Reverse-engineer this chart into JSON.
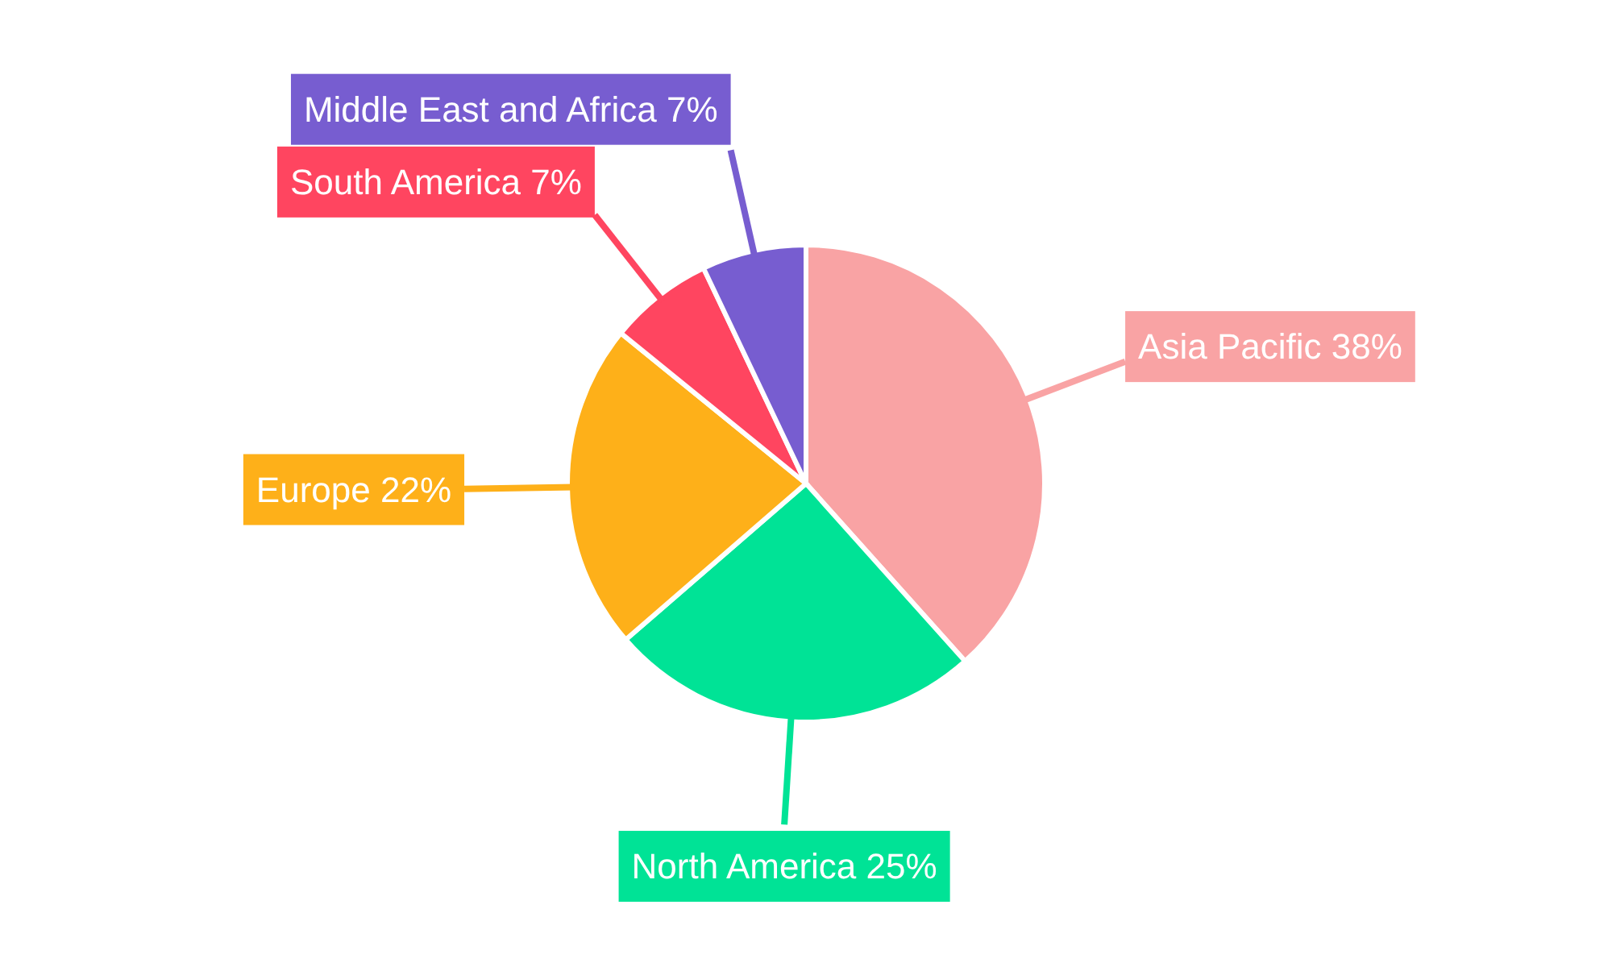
{
  "chart_data": {
    "type": "pie",
    "categories": [
      "Asia Pacific",
      "North America",
      "Europe",
      "South America",
      "Middle East and Africa"
    ],
    "values": [
      38,
      25,
      22,
      7,
      7
    ],
    "value_labels": [
      "38%",
      "25%",
      "22%",
      "7%",
      "7%"
    ],
    "colors": [
      "#f9a3a4",
      "#00e396",
      "#feb019",
      "#ff4560",
      "#775dd0"
    ]
  }
}
